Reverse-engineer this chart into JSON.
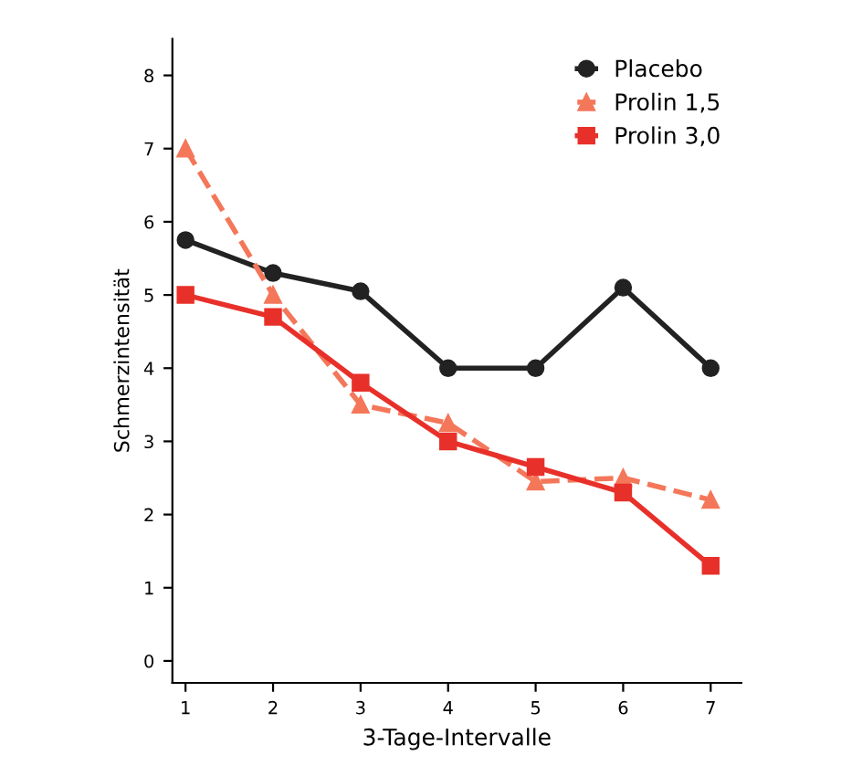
{
  "chart_data": {
    "type": "line",
    "xlabel": "3-Tage-Intervalle",
    "ylabel": "Schmerzintensität",
    "x": [
      1,
      2,
      3,
      4,
      5,
      6,
      7
    ],
    "series": [
      {
        "name": "Placebo",
        "color": "#222222",
        "marker": "circle",
        "line_style": "solid",
        "values": [
          5.75,
          5.3,
          5.05,
          4,
          4,
          5.1,
          4
        ]
      },
      {
        "name": "Prolin 1,5",
        "color": "#f4775a",
        "marker": "triangle",
        "line_style": "dashed",
        "values": [
          7,
          5,
          3.5,
          3.25,
          2.45,
          2.5,
          2.2
        ]
      },
      {
        "name": "Prolin 3,0",
        "color": "#e8302a",
        "marker": "square",
        "line_style": "solid",
        "values": [
          5,
          4.7,
          3.8,
          3,
          2.65,
          2.3,
          1.3
        ]
      }
    ],
    "xlim": [
      0.85,
      7.35
    ],
    "ylim": [
      -0.3,
      8.5
    ],
    "xticks": [
      1,
      2,
      3,
      4,
      5,
      6,
      7
    ],
    "yticks": [
      0,
      1,
      2,
      3,
      4,
      5,
      6,
      7,
      8
    ],
    "grid": false,
    "legend": "top right"
  }
}
